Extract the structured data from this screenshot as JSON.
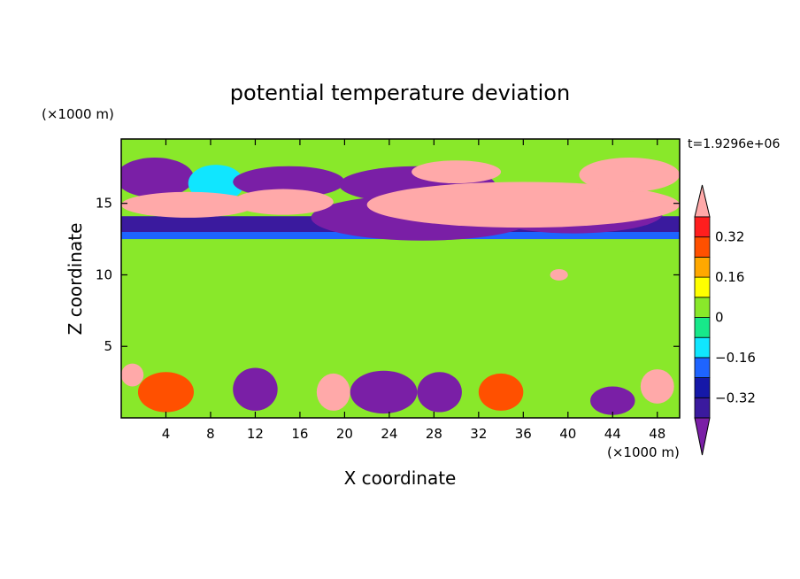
{
  "chart_data": {
    "type": "heatmap",
    "title": "potential temperature deviation",
    "xlabel": "X coordinate",
    "ylabel": "Z coordinate",
    "x_unit_label": "(×1000 m)",
    "y_unit_label": "(×1000 m)",
    "time_label": "t=1.9296e+06",
    "xlim": [
      0,
      50
    ],
    "ylim": [
      0,
      19.5
    ],
    "x_ticks": [
      4,
      8,
      12,
      16,
      20,
      24,
      28,
      32,
      36,
      40,
      44,
      48
    ],
    "y_ticks": [
      5,
      10,
      15
    ],
    "colorbar": {
      "levels": [
        -0.4,
        -0.32,
        -0.24,
        -0.16,
        -0.08,
        0,
        0.08,
        0.16,
        0.24,
        0.32,
        0.4
      ],
      "tick_values": [
        0.32,
        0.16,
        0,
        -0.16,
        -0.32
      ],
      "tick_labels": [
        "0.32",
        "0.16",
        "0",
        "−0.16",
        "−0.32"
      ],
      "colors": [
        "#7a1fa6",
        "#3a1a9e",
        "#1518a8",
        "#1e64ff",
        "#10e6ff",
        "#17e88a",
        "#89e82a",
        "#ffff00",
        "#ffa800",
        "#ff5000",
        "#ff1e1e",
        "#ffa9a9"
      ]
    },
    "features": [
      {
        "kind": "background",
        "value": 0.0
      },
      {
        "kind": "band",
        "x": [
          0,
          50
        ],
        "z": [
          12.5,
          13.0
        ],
        "value": -0.24
      },
      {
        "kind": "band",
        "x": [
          0,
          50
        ],
        "z": [
          13.0,
          14.1
        ],
        "value": -0.36
      },
      {
        "kind": "blob",
        "x": 3.0,
        "z": 16.8,
        "rx": 3.5,
        "rz": 1.4,
        "value": -0.42
      },
      {
        "kind": "blob",
        "x": 8.5,
        "z": 16.4,
        "rx": 2.5,
        "rz": 1.3,
        "value": -0.1
      },
      {
        "kind": "blob",
        "x": 15.0,
        "z": 16.5,
        "rx": 5.0,
        "rz": 1.1,
        "value": -0.42
      },
      {
        "kind": "blob",
        "x": 26.5,
        "z": 16.3,
        "rx": 7.0,
        "rz": 1.3,
        "value": -0.42
      },
      {
        "kind": "blob",
        "x": 27.0,
        "z": 14.0,
        "rx": 10.0,
        "rz": 1.6,
        "value": -0.42
      },
      {
        "kind": "blob",
        "x": 40.5,
        "z": 14.3,
        "rx": 8.0,
        "rz": 1.4,
        "value": -0.42
      },
      {
        "kind": "blob",
        "x": 6.0,
        "z": 14.9,
        "rx": 6.0,
        "rz": 0.9,
        "value": 0.45
      },
      {
        "kind": "blob",
        "x": 14.5,
        "z": 15.1,
        "rx": 4.5,
        "rz": 0.9,
        "value": 0.45
      },
      {
        "kind": "blob",
        "x": 36.0,
        "z": 14.9,
        "rx": 14.0,
        "rz": 1.6,
        "value": 0.45
      },
      {
        "kind": "blob",
        "x": 45.5,
        "z": 17.0,
        "rx": 4.5,
        "rz": 1.2,
        "value": 0.45
      },
      {
        "kind": "blob",
        "x": 30.0,
        "z": 17.2,
        "rx": 4.0,
        "rz": 0.8,
        "value": 0.45
      },
      {
        "kind": "blob",
        "x": 39.2,
        "z": 10.0,
        "rx": 0.8,
        "rz": 0.4,
        "value": 0.45
      },
      {
        "kind": "blob",
        "x": 1.0,
        "z": 3.0,
        "rx": 1.0,
        "rz": 0.8,
        "value": 0.45
      },
      {
        "kind": "blob",
        "x": 4.0,
        "z": 1.8,
        "rx": 2.5,
        "rz": 1.4,
        "value": 0.3
      },
      {
        "kind": "blob",
        "x": 12.0,
        "z": 2.0,
        "rx": 2.0,
        "rz": 1.5,
        "value": -0.42
      },
      {
        "kind": "blob",
        "x": 19.0,
        "z": 1.8,
        "rx": 1.5,
        "rz": 1.3,
        "value": 0.45
      },
      {
        "kind": "blob",
        "x": 23.5,
        "z": 1.8,
        "rx": 3.0,
        "rz": 1.5,
        "value": -0.42
      },
      {
        "kind": "blob",
        "x": 28.5,
        "z": 1.8,
        "rx": 2.0,
        "rz": 1.4,
        "value": -0.42
      },
      {
        "kind": "blob",
        "x": 34.0,
        "z": 1.8,
        "rx": 2.0,
        "rz": 1.3,
        "value": 0.3
      },
      {
        "kind": "blob",
        "x": 44.0,
        "z": 1.2,
        "rx": 2.0,
        "rz": 1.0,
        "value": -0.42
      },
      {
        "kind": "blob",
        "x": 48.0,
        "z": 2.2,
        "rx": 1.5,
        "rz": 1.2,
        "value": 0.45
      }
    ]
  }
}
